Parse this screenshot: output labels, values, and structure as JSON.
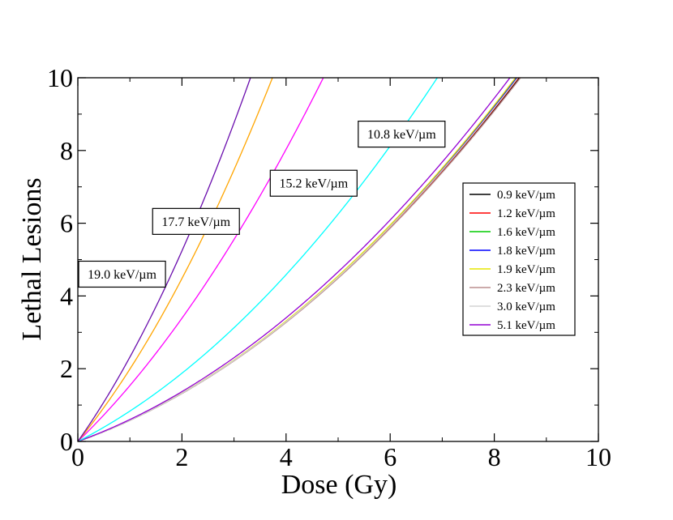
{
  "chart_data": {
    "type": "line",
    "title": "",
    "xlabel": "Dose (Gy)",
    "ylabel": "Lethal Lesions",
    "xlim": [
      0,
      10
    ],
    "ylim": [
      0,
      10
    ],
    "x_ticks": [
      0,
      2,
      4,
      6,
      8,
      10
    ],
    "y_ticks": [
      0,
      2,
      4,
      6,
      8,
      10
    ],
    "x_tick_labels": [
      "0",
      "2",
      "4",
      "6",
      "8",
      "10"
    ],
    "y_tick_labels": [
      "0",
      "2",
      "4",
      "6",
      "8",
      "10"
    ],
    "grid": false,
    "legend_position": "right",
    "model": "lesions = alpha * dose + beta * dose^2",
    "series": [
      {
        "name": "0.9 keV/µm",
        "color": "#000000",
        "alpha": 0.5,
        "beta": 0.08
      },
      {
        "name": "1.2 keV/µm",
        "color": "#ff0000",
        "alpha": 0.5,
        "beta": 0.0805
      },
      {
        "name": "1.6 keV/µm",
        "color": "#00cc00",
        "alpha": 0.5,
        "beta": 0.081
      },
      {
        "name": "1.8 keV/µm",
        "color": "#0000ff",
        "alpha": 0.5,
        "beta": 0.0815
      },
      {
        "name": "1.9 keV/µm",
        "color": "#e6e600",
        "alpha": 0.5,
        "beta": 0.082
      },
      {
        "name": "2.3 keV/µm",
        "color": "#bc8f8f",
        "alpha": 0.5,
        "beta": 0.0795
      },
      {
        "name": "3.0 keV/µm",
        "color": "#d3d3d3",
        "alpha": 0.5,
        "beta": 0.0808
      },
      {
        "name": "5.1 keV/µm",
        "color": "#9400d3",
        "alpha": 0.52,
        "beta": 0.0825
      },
      {
        "name": "10.8 keV/µm",
        "color": "#00ffff",
        "alpha": 0.73,
        "beta": 0.104
      },
      {
        "name": "15.2 keV/µm",
        "color": "#ff00ff",
        "alpha": 1.38,
        "beta": 0.157
      },
      {
        "name": "17.7 keV/µm",
        "color": "#ffa500",
        "alpha": 1.74,
        "beta": 0.25
      },
      {
        "name": "19.0 keV/µm",
        "color": "#6a0dad",
        "alpha": 2.02,
        "beta": 0.3
      }
    ],
    "legend_entries": [
      "0.9 keV/µm",
      "1.2 keV/µm",
      "1.6 keV/µm",
      "1.8 keV/µm",
      "1.9 keV/µm",
      "2.3 keV/µm",
      "3.0 keV/µm",
      "5.1 keV/µm"
    ],
    "annotations": [
      {
        "text": "19.0 keV/µm",
        "x": 0.85,
        "y": 4.6
      },
      {
        "text": "17.7 keV/µm",
        "x": 2.27,
        "y": 6.05
      },
      {
        "text": "15.2 keV/µm",
        "x": 4.53,
        "y": 7.1
      },
      {
        "text": "10.8 keV/µm",
        "x": 6.22,
        "y": 8.45
      }
    ]
  }
}
